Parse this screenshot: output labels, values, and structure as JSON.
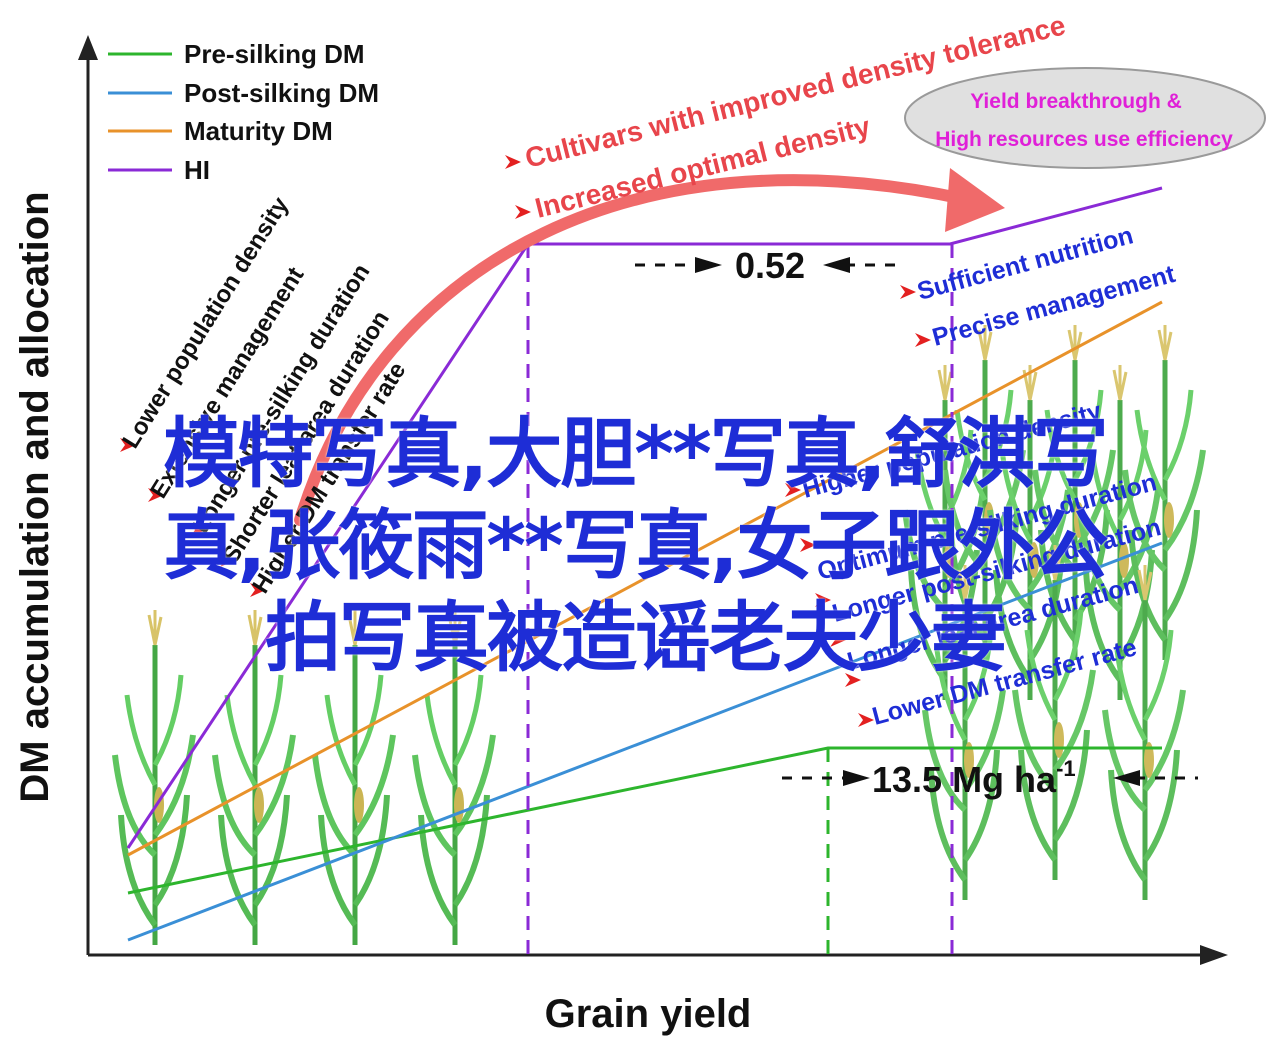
{
  "axes": {
    "ylabel": "DM accumulation and allocation",
    "xlabel": "Grain yield"
  },
  "legend": [
    {
      "label": "Pre-silking DM",
      "color": "#2db52d"
    },
    {
      "label": "Post-silking DM",
      "color": "#3a8fd6"
    },
    {
      "label": "Maturity DM",
      "color": "#e8922a"
    },
    {
      "label": "HI",
      "color": "#8a2ad6"
    }
  ],
  "left_factors": [
    "Lower population density",
    "Extensive management",
    "Longer pre-silking duration",
    "Shorter leaf area duration",
    "Higher DM transfer rate"
  ],
  "arrow_labels": {
    "line1": "Cultivars with improved density tolerance",
    "line2": "Increased optimal density"
  },
  "goal_ellipse": {
    "line1": "Yield breakthrough &",
    "line2": "High resources use efficiency"
  },
  "hi_value": "0.52",
  "yield_value": "13.5 Mg ha",
  "yield_superscript": "-1",
  "right_factors_top": [
    "Sufficient nutrition",
    "Precise management"
  ],
  "right_factors_bottom": [
    "Higher population density",
    "Optimum pre-silking duration",
    "Longer post-silking duration",
    "Longer leaf area duration",
    "Lower DM transfer rate"
  ],
  "overlay_text": [
    "模特写真,大胆**写真,舒淇写",
    "真,张筱雨**写真,女子跟外公",
    "拍写真被造谣老夫少妻"
  ],
  "colors": {
    "pre_silking": "#2db52d",
    "post_silking": "#3a8fd6",
    "maturity": "#e8922a",
    "hi": "#8a2ad6",
    "red_text": "#e8454b",
    "blue_text": "#1e2dd6",
    "magenta_text": "#e020d8",
    "overlay": "#1e2dd6"
  },
  "icons": [
    "maize-plant-icon",
    "red-pointer-icon",
    "curved-arrow-icon"
  ]
}
